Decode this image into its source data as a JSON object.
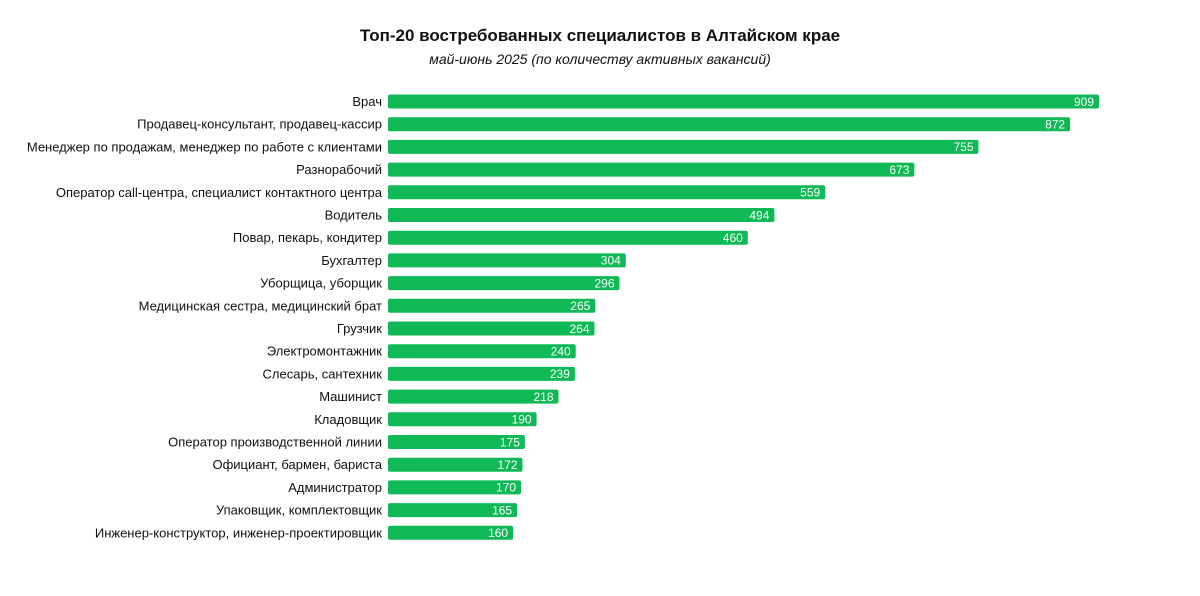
{
  "colors": {
    "bar": "#0fb955",
    "value_text": "#ffffff",
    "label_text": "#111111"
  },
  "chart_data": {
    "type": "bar",
    "orientation": "horizontal",
    "title": "Топ-20 востребованных специалистов в Алтайском крае",
    "subtitle": "май-июнь 2025 (по количеству активных вакансий)",
    "categories": [
      "Врач",
      "Продавец-консультант, продавец-кассир",
      "Менеджер по продажам, менеджер по работе с клиентами",
      "Разнорабочий",
      "Оператор call-центра, специалист контактного центра",
      "Водитель",
      "Повар, пекарь, кондитер",
      "Бухгалтер",
      "Уборщица, уборщик",
      "Медицинская сестра, медицинский брат",
      "Грузчик",
      "Электромонтажник",
      "Слесарь, сантехник",
      "Машинист",
      "Кладовщик",
      "Оператор производственной линии",
      "Официант, бармен, бариста",
      "Администратор",
      "Упаковщик, комплектовщик",
      "Инженер-конструктор, инженер-проектировщик"
    ],
    "values": [
      909,
      872,
      755,
      673,
      559,
      494,
      460,
      304,
      296,
      265,
      264,
      240,
      239,
      218,
      190,
      175,
      172,
      170,
      165,
      160
    ],
    "xlim": [
      0,
      909
    ],
    "grid": false,
    "legend": "none",
    "data_labels": "inside-end"
  }
}
